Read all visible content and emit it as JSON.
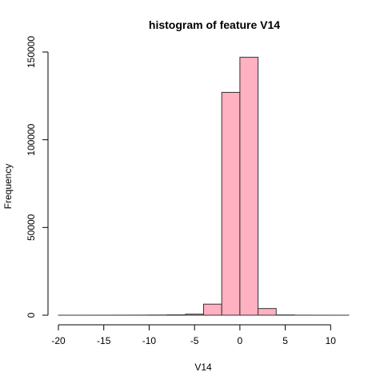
{
  "chart_data": {
    "type": "bar",
    "title": "histogram of feature V14",
    "xlabel": "V14",
    "ylabel": "Frequency",
    "bar_color": "#FFB0C1",
    "border_color": "#333333",
    "xlim": [
      -20,
      12
    ],
    "ylim": [
      0,
      150000
    ],
    "x_ticks": [
      -20,
      -15,
      -10,
      -5,
      0,
      5,
      10
    ],
    "x_tick_labels": [
      "-20",
      "-15",
      "-10",
      "-5",
      "0",
      "5",
      "10"
    ],
    "y_ticks": [
      0,
      50000,
      100000,
      150000
    ],
    "y_tick_labels": [
      "0",
      "50000",
      "100000",
      "150000"
    ],
    "bins": [
      {
        "start": -20,
        "end": -18,
        "value": 2
      },
      {
        "start": -18,
        "end": -16,
        "value": 5
      },
      {
        "start": -16,
        "end": -14,
        "value": 10
      },
      {
        "start": -14,
        "end": -12,
        "value": 30
      },
      {
        "start": -12,
        "end": -10,
        "value": 50
      },
      {
        "start": -10,
        "end": -8,
        "value": 100
      },
      {
        "start": -8,
        "end": -6,
        "value": 200
      },
      {
        "start": -6,
        "end": -4,
        "value": 600
      },
      {
        "start": -4,
        "end": -2,
        "value": 6300
      },
      {
        "start": -2,
        "end": 0,
        "value": 127000
      },
      {
        "start": 0,
        "end": 2,
        "value": 147000
      },
      {
        "start": 2,
        "end": 4,
        "value": 3800
      },
      {
        "start": 4,
        "end": 6,
        "value": 150
      },
      {
        "start": 6,
        "end": 8,
        "value": 40
      },
      {
        "start": 8,
        "end": 10,
        "value": 10
      },
      {
        "start": 10,
        "end": 12,
        "value": 3
      }
    ]
  }
}
